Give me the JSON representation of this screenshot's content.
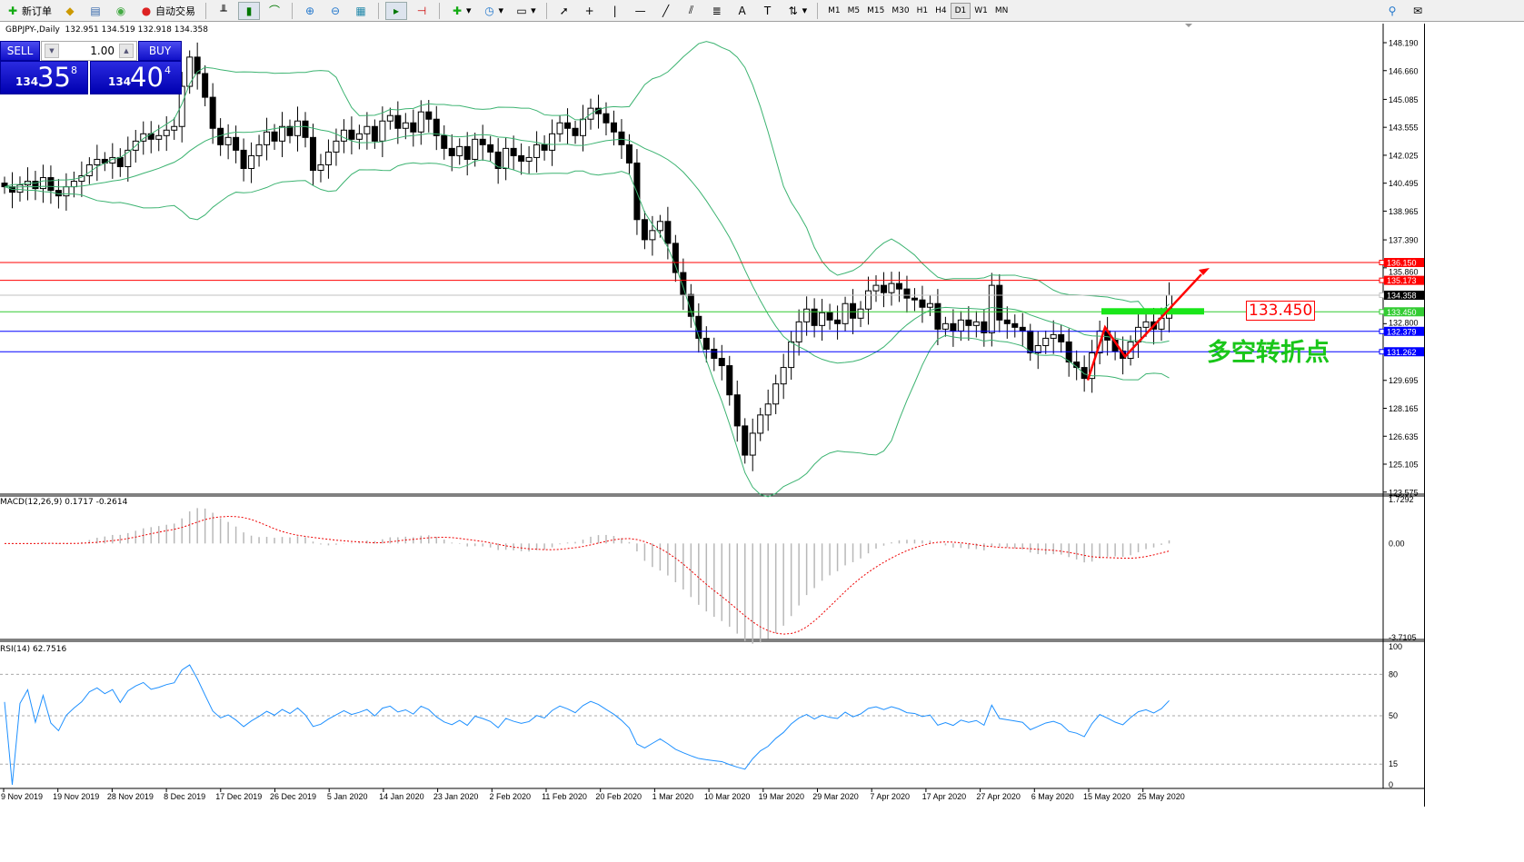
{
  "toolbar": {
    "items": [
      {
        "name": "new-order",
        "icon": "new-order-icon",
        "label": "新订单"
      },
      {
        "name": "metaeditor",
        "icon": "editor-icon",
        "label": ""
      },
      {
        "name": "terminal",
        "icon": "terminal-icon",
        "label": ""
      },
      {
        "name": "signals",
        "icon": "signal-icon",
        "label": ""
      },
      {
        "name": "auto-trading",
        "icon": "autotrade-icon",
        "label": "自动交易"
      }
    ],
    "timeframes": [
      "M1",
      "M5",
      "M15",
      "M30",
      "H1",
      "H4",
      "D1",
      "W1",
      "MN"
    ],
    "active_timeframe": "D1"
  },
  "chart": {
    "symbol_line": "GBPJPY-,Daily  132.951 134.519 132.918 134.358",
    "trade_panel": {
      "sell": "SELL",
      "buy": "BUY",
      "lot": "1.00",
      "sell_big": "134",
      "sell_main": "35",
      "sell_sup": "8",
      "buy_big": "134",
      "buy_main": "40",
      "buy_sup": "4"
    },
    "price_axis": [
      "148.190",
      "146.660",
      "145.085",
      "143.555",
      "142.025",
      "140.495",
      "138.965",
      "137.390",
      "135.860",
      "132.800",
      "129.695",
      "128.165",
      "126.635",
      "125.105",
      "123.575"
    ],
    "levels": [
      {
        "price": 136.15,
        "label": "136.150",
        "color": "#ff0000"
      },
      {
        "price": 135.173,
        "label": "135.173",
        "color": "#ff0000"
      },
      {
        "price": 134.358,
        "label": "134.358",
        "color": "#000000",
        "line": "#c0c0c0"
      },
      {
        "price": 133.45,
        "label": "133.450",
        "color": "#33cc33"
      },
      {
        "price": 132.379,
        "label": "132.379",
        "color": "#0000ff"
      },
      {
        "price": 131.262,
        "label": "131.262",
        "color": "#0000ff"
      }
    ],
    "annotation_price": "133.450",
    "annotation_text": "多空转折点",
    "closes": [
      140.3,
      140.0,
      140.4,
      140.6,
      140.2,
      140.8,
      140.1,
      139.8,
      140.3,
      140.6,
      140.9,
      141.5,
      141.8,
      141.6,
      141.9,
      141.4,
      142.3,
      142.8,
      143.2,
      142.9,
      143.1,
      143.4,
      143.6,
      145.8,
      147.4,
      146.5,
      145.2,
      143.5,
      142.6,
      143.0,
      142.3,
      141.3,
      142.0,
      142.6,
      143.3,
      142.8,
      143.6,
      143.1,
      143.9,
      143.0,
      141.2,
      141.5,
      142.2,
      142.8,
      143.4,
      142.9,
      143.2,
      143.6,
      142.8,
      143.9,
      144.2,
      143.5,
      143.8,
      143.3,
      144.4,
      144.0,
      143.1,
      142.4,
      142.0,
      142.5,
      141.8,
      142.9,
      142.6,
      142.2,
      141.3,
      142.4,
      142.0,
      141.7,
      141.9,
      142.6,
      142.3,
      143.2,
      143.8,
      143.5,
      143.1,
      144.0,
      144.6,
      144.3,
      143.8,
      143.3,
      142.6,
      141.6,
      138.5,
      137.4,
      137.9,
      138.4,
      137.2,
      135.6,
      134.4,
      133.2,
      132.0,
      131.4,
      130.9,
      130.5,
      128.9,
      127.2,
      125.6,
      126.8,
      127.8,
      128.4,
      129.5,
      130.4,
      131.8,
      132.9,
      133.6,
      132.7,
      133.4,
      133.0,
      132.8,
      133.9,
      133.1,
      133.6,
      134.6,
      134.9,
      134.5,
      135.0,
      134.7,
      134.2,
      134.1,
      133.7,
      133.9,
      132.5,
      132.8,
      132.4,
      133.0,
      132.7,
      132.9,
      132.3,
      134.9,
      133.0,
      132.8,
      132.6,
      132.4,
      131.2,
      131.6,
      132.0,
      132.2,
      131.8,
      130.7,
      130.4,
      129.8,
      131.2,
      132.4,
      131.9,
      131.3,
      130.9,
      131.8,
      132.6,
      132.9,
      132.5,
      133.1,
      134.358
    ]
  },
  "macd": {
    "label": "MACD(12,26,9) 0.1717 -0.2614",
    "axis": [
      "1.7292",
      "0.00",
      "-3.7105"
    ]
  },
  "rsi": {
    "label": "RSI(14) 62.7516",
    "axis": [
      "100",
      "80",
      "50",
      "15",
      "0"
    ]
  },
  "time_axis": [
    "9 Nov 2019",
    "19 Nov 2019",
    "28 Nov 2019",
    "8 Dec 2019",
    "17 Dec 2019",
    "26 Dec 2019",
    "5 Jan 2020",
    "14 Jan 2020",
    "23 Jan 2020",
    "2 Feb 2020",
    "11 Feb 2020",
    "20 Feb 2020",
    "1 Mar 2020",
    "10 Mar 2020",
    "19 Mar 2020",
    "29 Mar 2020",
    "7 Apr 2020",
    "17 Apr 2020",
    "27 Apr 2020",
    "6 May 2020",
    "15 May 2020",
    "25 May 2020"
  ]
}
